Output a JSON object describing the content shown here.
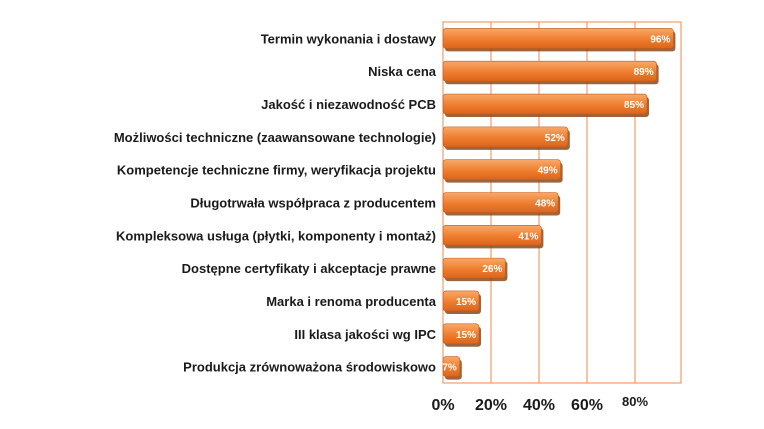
{
  "chart_data": {
    "type": "bar",
    "orientation": "horizontal",
    "categories": [
      "Termin wykonania i dostawy",
      "Niska cena",
      "Jakość i niezawodność PCB",
      "Możliwości techniczne (zaawansowane technologie)",
      "Kompetencje techniczne firmy, weryfikacja projektu",
      "Długotrwała współpraca z producentem",
      "Kompleksowa usługa (płytki, komponenty i montaż)",
      "Dostępne certyfikaty i akceptacje prawne",
      "Marka i renoma producenta",
      "III klasa jakości wg IPC",
      "Produkcja zrównoważona środowiskowo"
    ],
    "values": [
      96,
      89,
      85,
      52,
      49,
      48,
      41,
      26,
      15,
      15,
      7
    ],
    "value_labels": [
      "96%",
      "89%",
      "85%",
      "52%",
      "49%",
      "48%",
      "41%",
      "26%",
      "15%",
      "15%",
      "7%"
    ],
    "x_ticks": [
      "0%",
      "20%",
      "40%",
      "60%",
      "80%"
    ],
    "x_tick_values": [
      0,
      20,
      40,
      60,
      80
    ],
    "xlim": [
      0,
      100
    ],
    "title": "",
    "xlabel": "",
    "ylabel": "",
    "grid": true,
    "legend": false,
    "colors": {
      "bar": "#ef7d2d",
      "bar_highlight": "#f7a96a",
      "bar_shadow": "#8a4a1e",
      "plot_border": "#f08a4b",
      "gridline": "#f08a4b"
    }
  }
}
